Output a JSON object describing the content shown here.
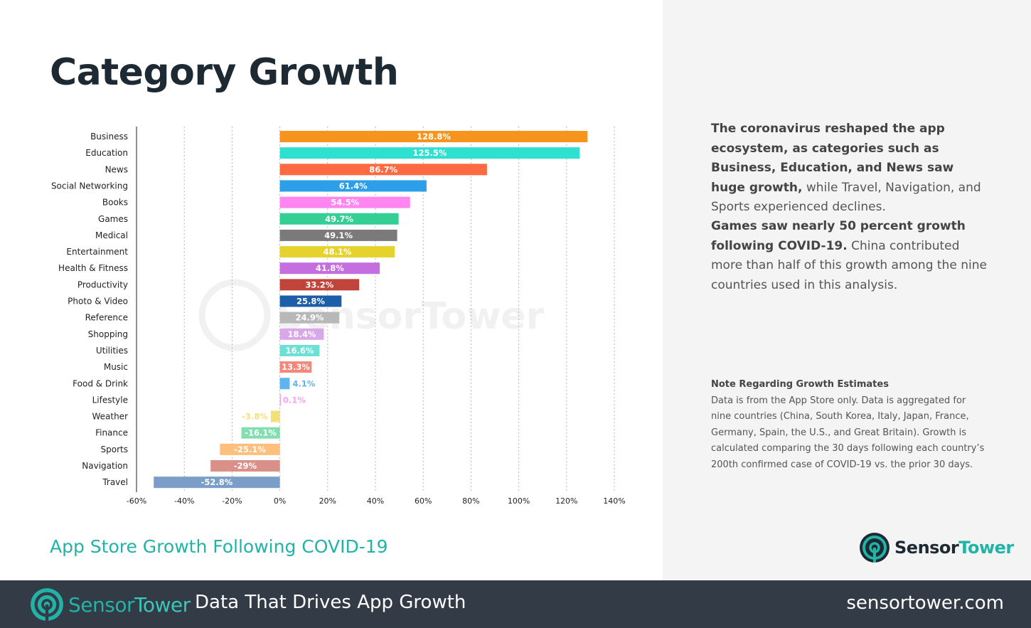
{
  "page": {
    "title": "Category Growth",
    "subtitle": "App Store Growth Following COVID-19"
  },
  "panel": {
    "p1_bold": "The coronavirus reshaped the app ecosystem, as categories such as Business, Education, and News saw huge growth,",
    "p1_rest": " while Travel, Navigation, and Sports experienced declines.",
    "p2_bold": "Games saw nearly 50 percent growth following COVID-19.",
    "p2_rest": " China contributed more than half of this growth among the nine countries used in this analysis.",
    "note_title": "Note Regarding Growth Estimates",
    "note_body": "Data is from the App Store only. Data is aggregated for nine countries (China, South Korea, Italy, Japan, France, Germany, Spain, the U.S., and Great Britain). Growth is calculated comparing the 30 days following each country’s 200th confirmed case of COVID-19 vs. the prior 30 days."
  },
  "brand": {
    "sensor": "Sensor",
    "tower": "Tower",
    "color_dark": "#1e2a33",
    "color_teal": "#22b3a7"
  },
  "footer": {
    "sensor": "Sensor",
    "tower": "Tower",
    "tagline": "Data That Drives App Growth",
    "url": "sensortower.com"
  },
  "chart_data": {
    "type": "bar",
    "orientation": "horizontal",
    "title": "Category Growth",
    "xlabel": "",
    "ylabel": "",
    "xlim": [
      -60,
      140
    ],
    "x_ticks": [
      "-60%",
      "-40%",
      "-20%",
      "0%",
      "20%",
      "40%",
      "60%",
      "80%",
      "100%",
      "120%",
      "140%"
    ],
    "x_tick_values": [
      -60,
      -40,
      -20,
      0,
      20,
      40,
      60,
      80,
      100,
      120,
      140
    ],
    "grid": true,
    "categories": [
      "Business",
      "Education",
      "News",
      "Social Networking",
      "Books",
      "Games",
      "Medical",
      "Entertainment",
      "Health & Fitness",
      "Productivity",
      "Photo & Video",
      "Reference",
      "Shopping",
      "Utilities",
      "Music",
      "Food & Drink",
      "Lifestyle",
      "Weather",
      "Finance",
      "Sports",
      "Navigation",
      "Travel"
    ],
    "values": [
      128.8,
      125.5,
      86.7,
      61.4,
      54.5,
      49.7,
      49.1,
      48.1,
      41.8,
      33.2,
      25.8,
      24.9,
      18.4,
      16.6,
      13.3,
      4.1,
      0.1,
      -3.8,
      -16.1,
      -25.1,
      -29,
      -52.8
    ],
    "labels": [
      "128.8%",
      "125.5%",
      "86.7%",
      "61.4%",
      "54.5%",
      "49.7%",
      "49.1%",
      "48.1%",
      "41.8%",
      "33.2%",
      "25.8%",
      "24.9%",
      "18.4%",
      "16.6%",
      "13.3%",
      "4.1%",
      "0.1%",
      "-3.8%",
      "-16.1%",
      "-25.1%",
      "-29%",
      "-52.8%"
    ],
    "colors": [
      "#f7941d",
      "#2ee0d0",
      "#fc6a42",
      "#2c9fe8",
      "#ff85f0",
      "#34cf95",
      "#7a7a7a",
      "#e6d22c",
      "#c56ee0",
      "#c0443a",
      "#1c5ea8",
      "#b8b8b8",
      "#d9a6e8",
      "#6ce0d5",
      "#f2877a",
      "#5fb3f0",
      "#f7a3f0",
      "#f2e07a",
      "#84dfb0",
      "#fcc07c",
      "#d89088",
      "#7b9ec8"
    ],
    "watermark": "SensorTower"
  }
}
